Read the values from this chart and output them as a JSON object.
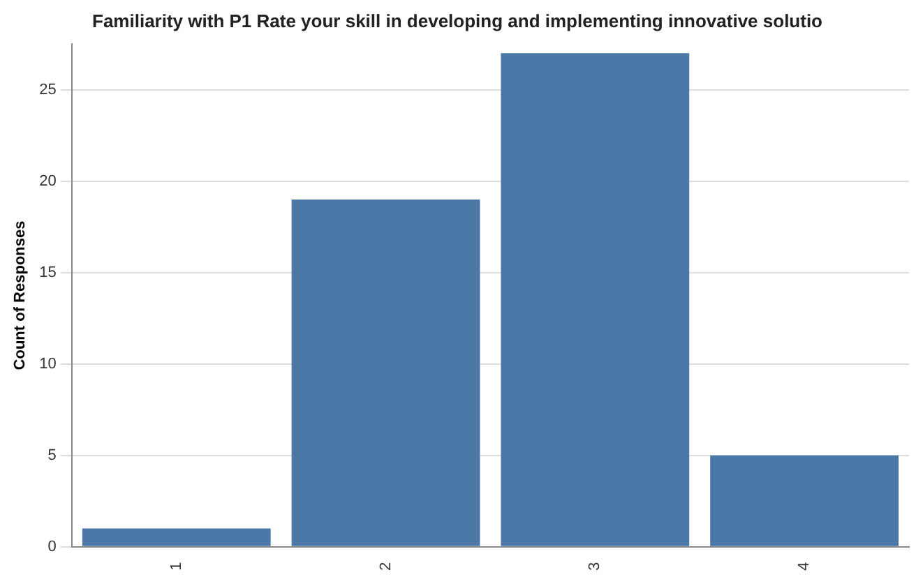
{
  "chart_data": {
    "type": "bar",
    "title": "Familiarity with P1 Rate your skill in developing and implementing innovative solutio",
    "ylabel": "Count of Responses",
    "categories": [
      "1",
      "2",
      "3",
      "4"
    ],
    "values": [
      1,
      19,
      27,
      5
    ],
    "color": "#4c78a8",
    "ylim": [
      0,
      27.5
    ],
    "yticks": [
      0,
      5,
      10,
      15,
      20,
      25
    ],
    "grid": "y"
  }
}
